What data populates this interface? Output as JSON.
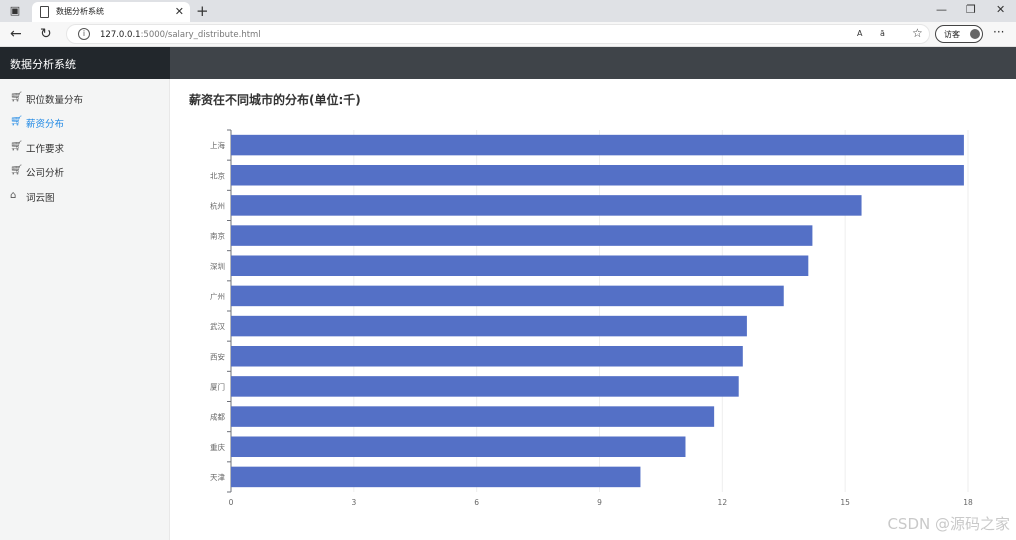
{
  "browser": {
    "tab_title": "数据分析系统",
    "url_host": "127.0.0.1",
    "url_path": ":5000/salary_distribute.html",
    "read_aloud": "A",
    "immersive": "ā",
    "guest_label": "访客"
  },
  "app": {
    "brand": "数据分析系统",
    "menu": [
      {
        "label": "职位数量分布",
        "icon": "cart-icon",
        "active": false
      },
      {
        "label": "薪资分布",
        "icon": "cart-icon",
        "active": true
      },
      {
        "label": "工作要求",
        "icon": "cart-icon",
        "active": false
      },
      {
        "label": "公司分析",
        "icon": "cart-icon",
        "active": false
      },
      {
        "label": "词云图",
        "icon": "home-icon",
        "active": false
      }
    ]
  },
  "chart_data": {
    "type": "bar",
    "orientation": "horizontal",
    "title": "薪资在不同城市的分布(单位:千)",
    "categories": [
      "上海",
      "北京",
      "杭州",
      "南京",
      "深圳",
      "广州",
      "武汉",
      "西安",
      "厦门",
      "成都",
      "重庆",
      "天津"
    ],
    "values": [
      17.9,
      17.9,
      15.4,
      14.2,
      14.1,
      13.5,
      12.6,
      12.5,
      12.4,
      11.8,
      11.1,
      10.0
    ],
    "xlim": [
      0,
      18
    ],
    "xticks": [
      0,
      3,
      6,
      9,
      12,
      15,
      18
    ],
    "grid": true,
    "color": "#5470c6"
  },
  "watermark": "CSDN @源码之家"
}
